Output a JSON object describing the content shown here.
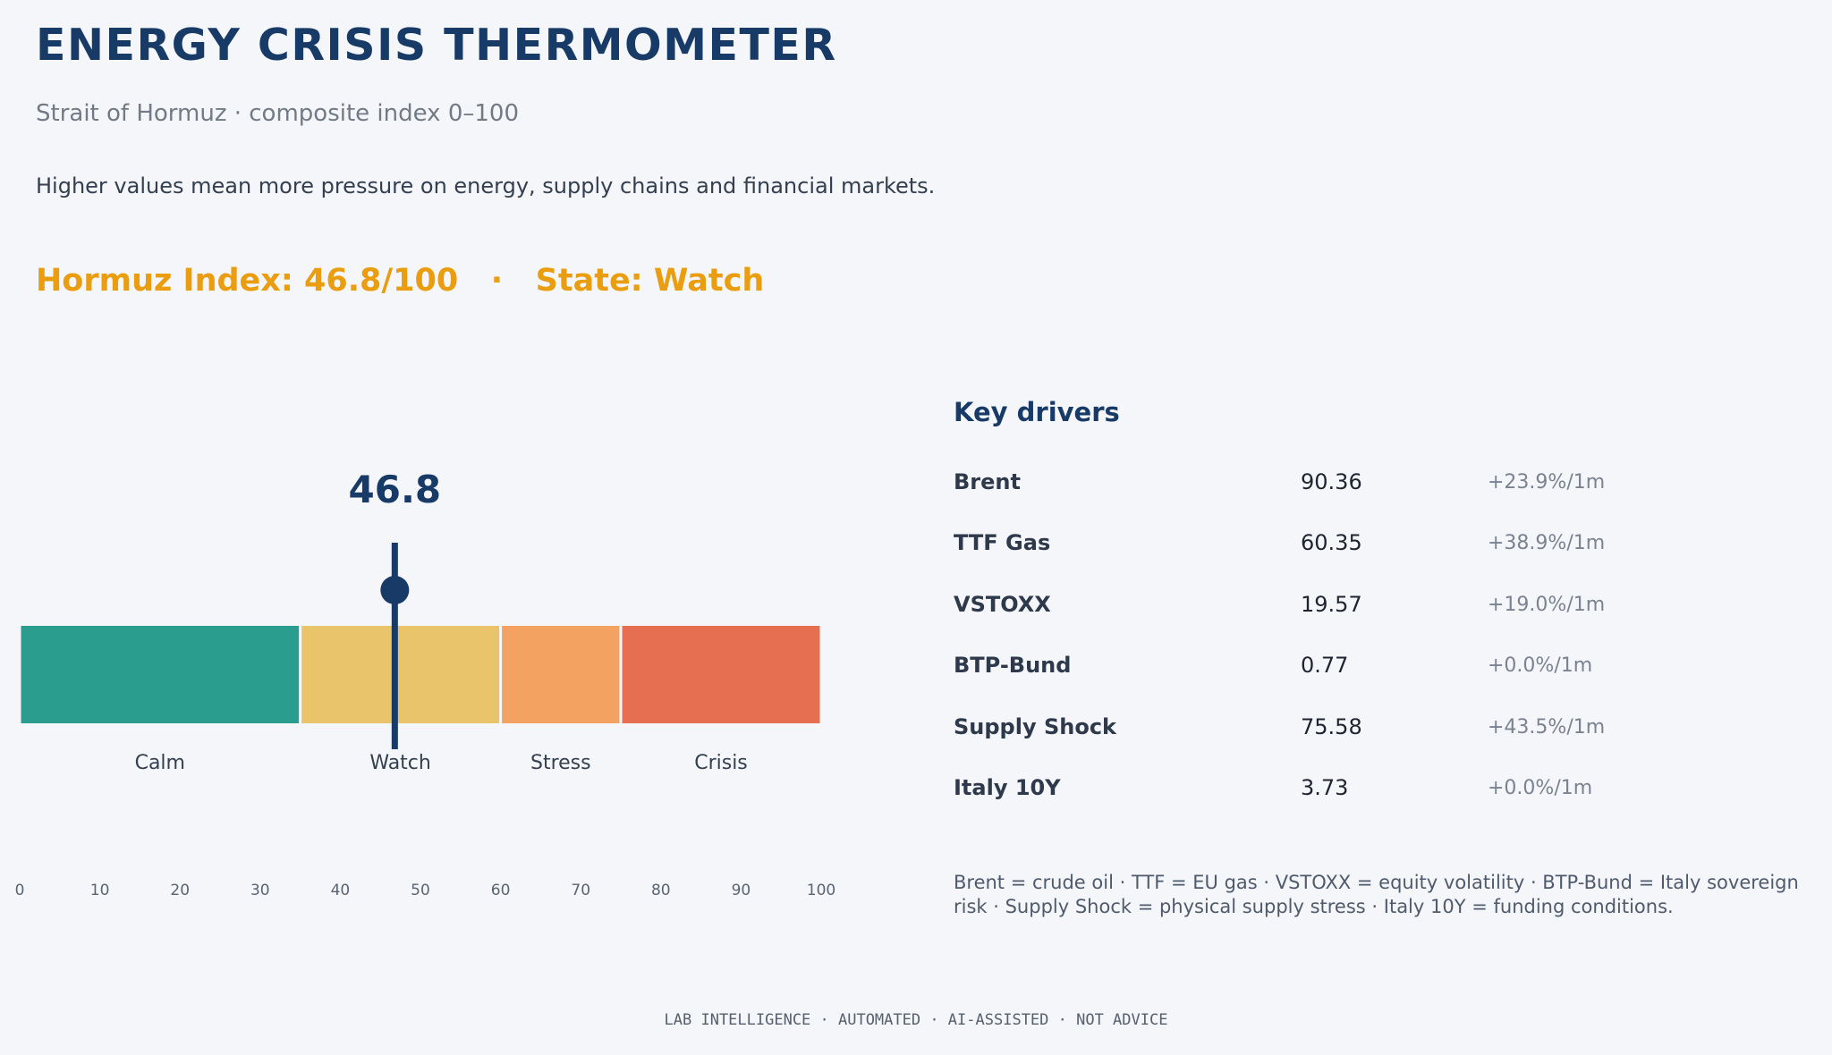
{
  "header": {
    "title": "ENERGY CRISIS THERMOMETER",
    "subtitle": "Strait of Hormuz · composite index 0–100",
    "description": "Higher values mean more pressure on energy, supply chains and financial markets."
  },
  "status": {
    "index_label": "Hormuz Index: 46.8/100",
    "separator": "·",
    "state_label": "State: Watch",
    "color": "#e99d0f"
  },
  "chart_data": {
    "type": "bar",
    "orientation": "horizontal",
    "value": 46.8,
    "value_label": "46.8",
    "xlim": [
      0,
      100
    ],
    "ticks": [
      0,
      10,
      20,
      30,
      40,
      50,
      60,
      70,
      80,
      90,
      100
    ],
    "segments": [
      {
        "label": "Calm",
        "from": 0,
        "to": 35,
        "color": "#2a9d8f"
      },
      {
        "label": "Watch",
        "from": 35,
        "to": 60,
        "color": "#e9c46a"
      },
      {
        "label": "Stress",
        "from": 60,
        "to": 75,
        "color": "#f4a261"
      },
      {
        "label": "Crisis",
        "from": 75,
        "to": 100,
        "color": "#e76f51"
      }
    ],
    "marker_color": "#173a66"
  },
  "drivers": {
    "heading": "Key drivers",
    "items": [
      {
        "name": "Brent",
        "value": "90.36",
        "change": "+23.9%/1m"
      },
      {
        "name": "TTF Gas",
        "value": "60.35",
        "change": "+38.9%/1m"
      },
      {
        "name": "VSTOXX",
        "value": "19.57",
        "change": "+19.0%/1m"
      },
      {
        "name": "BTP-Bund",
        "value": "0.77",
        "change": "+0.0%/1m"
      },
      {
        "name": "Supply Shock",
        "value": "75.58",
        "change": "+43.5%/1m"
      },
      {
        "name": "Italy 10Y",
        "value": "3.73",
        "change": "+0.0%/1m"
      }
    ],
    "note": "Brent = crude oil · TTF = EU gas · VSTOXX = equity volatility · BTP-Bund = Italy sovereign risk · Supply Shock = physical supply stress · Italy 10Y = funding conditions."
  },
  "footer": {
    "text": "LAB INTELLIGENCE · AUTOMATED · AI-ASSISTED · NOT ADVICE"
  }
}
